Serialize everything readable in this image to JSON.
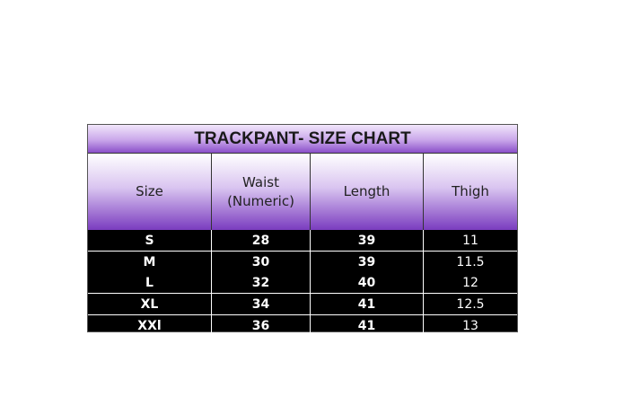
{
  "title": "TRACKPANT- SIZE CHART",
  "headers": [
    "Size",
    "Waist (Numeric)",
    "Length",
    "Thigh"
  ],
  "rows": [
    [
      "S",
      "28",
      "39",
      "11"
    ],
    [
      "M",
      "30",
      "39",
      "11.5"
    ],
    [
      "L",
      "32",
      "40",
      "12"
    ],
    [
      "XL",
      "34",
      "41",
      "12.5"
    ],
    [
      "XXl",
      "36",
      "41",
      "13"
    ]
  ],
  "colors": {
    "header_gradient_bottom": "#7a3cbf",
    "body_bg": "#000000",
    "text_body": "#ffffff"
  }
}
